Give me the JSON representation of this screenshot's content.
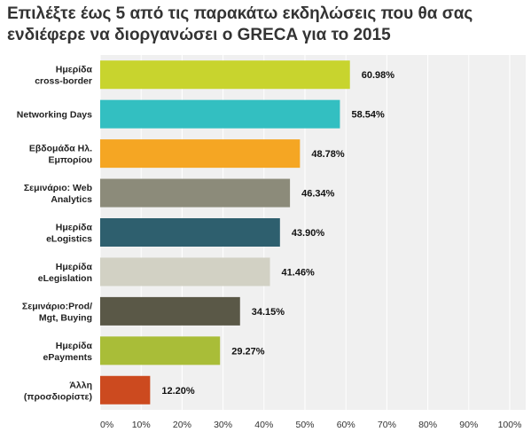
{
  "chart_data": {
    "type": "bar",
    "orientation": "horizontal",
    "title": "Επιλέξτε έως 5 από τις παρακάτω εκδηλώσεις που θα σας ενδιέφερε να διοργανώσει ο GRECA για το 2015",
    "categories": [
      [
        "Ημερίδα",
        "cross-border"
      ],
      [
        "Networking Days"
      ],
      [
        "Εβδομάδα Ηλ.",
        "Εμπορίου"
      ],
      [
        "Σεμινάριο: Web",
        "Analytics"
      ],
      [
        "Ημερίδα",
        "eLogistics"
      ],
      [
        "Ημερίδα",
        "eLegislation"
      ],
      [
        "Σεμινάριο:Prod/",
        "Mgt, Buying"
      ],
      [
        "Ημερίδα",
        "ePayments"
      ],
      [
        "Άλλη",
        "(προσδιορίστε)"
      ]
    ],
    "values": [
      60.98,
      58.54,
      48.78,
      46.34,
      43.9,
      41.46,
      34.15,
      29.27,
      12.2
    ],
    "value_labels": [
      "60.98%",
      "58.54%",
      "48.78%",
      "46.34%",
      "43.90%",
      "41.46%",
      "34.15%",
      "29.27%",
      "12.20%"
    ],
    "colors": [
      "#c8d42e",
      "#33bfc1",
      "#f5a623",
      "#8c8b7a",
      "#2e5f6e",
      "#d2d1c4",
      "#5a5847",
      "#a9bd38",
      "#cc4a1f"
    ],
    "xlim": [
      0,
      100
    ],
    "xticks": [
      "0%",
      "10%",
      "20%",
      "30%",
      "40%",
      "50%",
      "60%",
      "70%",
      "80%",
      "90%",
      "100%"
    ],
    "grid": true,
    "background": "#f0f0f0"
  }
}
